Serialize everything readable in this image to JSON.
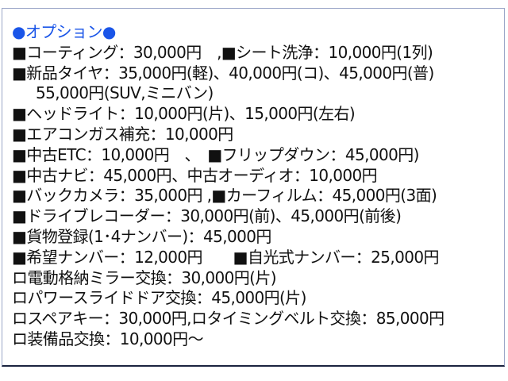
{
  "title": "●オプション●",
  "lines": [
    "■コーティング：30,000円　,■シート洗浄：10,000円(1列)",
    "■新品タイヤ：35,000円(軽)、40,000円(コ)、45,000円(普)",
    "55,000円(SUV,ミニバン)",
    "■ヘッドライト：10,000円(片)、15,000円(左右)",
    "■エアコンガス補充：10,000円",
    "■中古ETC：10,000円　、　■フリップダウン：45,000円)",
    "■中古ナビ：45,000円、中古オーディオ：10,000円",
    "■バックカメラ：35,000円 ,■カーフィルム：45,000円(3面)",
    "■ドライブレコーダー：30,000円(前)、45,000円(前後)",
    "■貨物登録(1･4ナンバー)：45,000円",
    "■希望ナンバー：12,000円　　■自光式ナンバー：25,000円",
    "ロ電動格納ミラー交換：30,000円(片)",
    "ロパワースライドドア交換：45,000円(片)",
    "ロスペアキー：30,000円,ロタイミングベルト交換：85,000円",
    "ロ装備品交換：10,000円～"
  ],
  "colors": {
    "title": "#1a55e8",
    "text": "#111111",
    "border_bottom": "#1b2440",
    "border": "#9aa6c8"
  }
}
